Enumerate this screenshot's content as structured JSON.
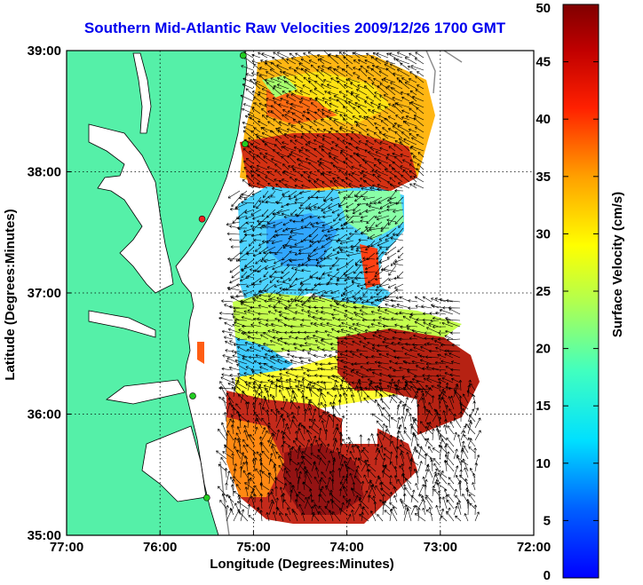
{
  "title": "Southern Mid-Atlantic Raw Velocities 2009/12/26 1700 GMT",
  "map": {
    "xlabel": "Longitude (Degrees:Minutes)",
    "ylabel": "Latitude (Degrees:Minutes)",
    "lon_range": [
      -77,
      -72
    ],
    "lat_range": [
      35,
      39
    ],
    "lon_ticks": [
      {
        "value": -77,
        "label": "77:00"
      },
      {
        "value": -76,
        "label": "76:00"
      },
      {
        "value": -75,
        "label": "75:00"
      },
      {
        "value": -74,
        "label": "74:00"
      },
      {
        "value": -73,
        "label": "73:00"
      },
      {
        "value": -72,
        "label": "72:00"
      }
    ],
    "lat_ticks": [
      {
        "value": 35,
        "label": "35:00"
      },
      {
        "value": 36,
        "label": "36:00"
      },
      {
        "value": 37,
        "label": "37:00"
      },
      {
        "value": 38,
        "label": "38:00"
      },
      {
        "value": 39,
        "label": "39:00"
      }
    ],
    "grid": "dotted",
    "colors": {
      "land": "#55f0a8",
      "water": "#ffffff",
      "station": "#22cc22",
      "station_offline": "#ee2222"
    },
    "stations": [
      {
        "lon": -75.11,
        "lat": 38.96,
        "status": "active"
      },
      {
        "lon": -75.09,
        "lat": 38.23,
        "status": "active"
      },
      {
        "lon": -75.55,
        "lat": 37.61,
        "status": "offline"
      },
      {
        "lon": -75.65,
        "lat": 36.15,
        "status": "active"
      },
      {
        "lon": -75.5,
        "lat": 35.31,
        "status": "active"
      }
    ]
  },
  "colorbar": {
    "label": "Surface Velocity (cm/s)",
    "min": 0,
    "max": 50,
    "ticks": [
      {
        "value": 0,
        "label": "0"
      },
      {
        "value": 5,
        "label": "5"
      },
      {
        "value": 10,
        "label": "10"
      },
      {
        "value": 15,
        "label": "15"
      },
      {
        "value": 20,
        "label": "20"
      },
      {
        "value": 25,
        "label": "25"
      },
      {
        "value": 30,
        "label": "30"
      },
      {
        "value": 35,
        "label": "35"
      },
      {
        "value": 40,
        "label": "40"
      },
      {
        "value": 45,
        "label": "45"
      },
      {
        "value": 50,
        "label": "50"
      }
    ],
    "colormap": "jet"
  }
}
